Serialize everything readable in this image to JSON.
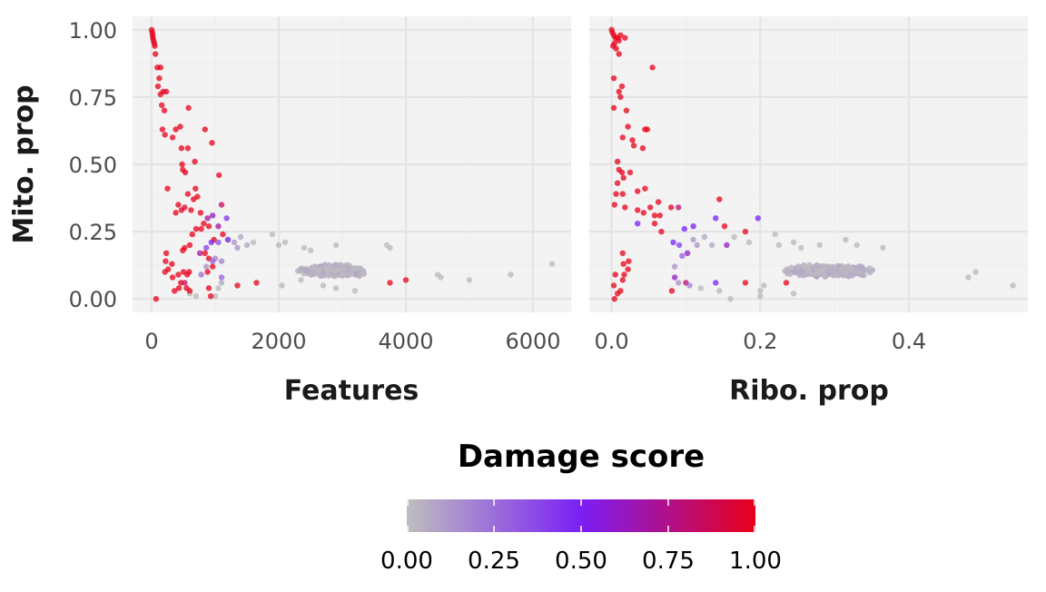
{
  "chart_data": {
    "type": "scatter",
    "y_label": "Mito. prop",
    "y_ticks": [
      "0.00",
      "0.25",
      "0.50",
      "0.75",
      "1.00"
    ],
    "y_range": [
      -0.05,
      1.05
    ],
    "legend": {
      "title": "Damage score",
      "ticks": [
        "0.00",
        "0.25",
        "0.50",
        "0.75",
        "1.00"
      ],
      "position": "bottom",
      "colors": [
        "#bebebe",
        "#7a1ff5",
        "#e8001a"
      ]
    },
    "background": "#f3f3f3",
    "grid": true,
    "panels": [
      {
        "x_label": "Features",
        "x_ticks": [
          "0",
          "2000",
          "4000",
          "6000"
        ],
        "x_range": [
          -300,
          6600
        ],
        "damaged_points": [
          [
            0,
            1.0,
            1.0
          ],
          [
            10,
            0.99,
            1.0
          ],
          [
            15,
            0.98,
            1.0
          ],
          [
            20,
            0.97,
            1.0
          ],
          [
            30,
            0.96,
            1.0
          ],
          [
            40,
            0.95,
            1.0
          ],
          [
            50,
            0.94,
            1.0
          ],
          [
            60,
            0.91,
            1.0
          ],
          [
            90,
            0.86,
            1.0
          ],
          [
            140,
            0.86,
            1.0
          ],
          [
            120,
            0.82,
            1.0
          ],
          [
            100,
            0.79,
            1.0
          ],
          [
            180,
            0.77,
            1.0
          ],
          [
            230,
            0.77,
            1.0
          ],
          [
            140,
            0.76,
            1.0
          ],
          [
            160,
            0.72,
            1.0
          ],
          [
            200,
            0.7,
            1.0
          ],
          [
            170,
            0.63,
            1.0
          ],
          [
            210,
            0.61,
            1.0
          ],
          [
            380,
            0.63,
            1.0
          ],
          [
            450,
            0.64,
            1.0
          ],
          [
            330,
            0.6,
            1.0
          ],
          [
            580,
            0.71,
            1.0
          ],
          [
            840,
            0.63,
            1.0
          ],
          [
            470,
            0.56,
            1.0
          ],
          [
            570,
            0.56,
            1.0
          ],
          [
            950,
            0.58,
            1.0
          ],
          [
            680,
            0.51,
            1.0
          ],
          [
            480,
            0.5,
            1.0
          ],
          [
            490,
            0.48,
            1.0
          ],
          [
            530,
            0.47,
            1.0
          ],
          [
            1060,
            0.46,
            1.0
          ],
          [
            250,
            0.41,
            1.0
          ],
          [
            570,
            0.39,
            1.0
          ],
          [
            690,
            0.41,
            1.0
          ],
          [
            660,
            0.37,
            1.0
          ],
          [
            720,
            0.38,
            1.0
          ],
          [
            420,
            0.35,
            1.0
          ],
          [
            470,
            0.33,
            1.0
          ],
          [
            520,
            0.34,
            0.95
          ],
          [
            620,
            0.33,
            1.0
          ],
          [
            380,
            0.32,
            1.0
          ],
          [
            770,
            0.32,
            1.0
          ],
          [
            880,
            0.3,
            0.7
          ],
          [
            960,
            0.31,
            0.6
          ],
          [
            1100,
            0.35,
            0.85
          ],
          [
            1180,
            0.3,
            0.45
          ],
          [
            820,
            0.28,
            1.0
          ],
          [
            900,
            0.27,
            1.0
          ],
          [
            780,
            0.26,
            1.0
          ],
          [
            700,
            0.26,
            1.0
          ],
          [
            640,
            0.24,
            1.0
          ],
          [
            1050,
            0.27,
            0.7
          ],
          [
            980,
            0.22,
            1.0
          ],
          [
            1120,
            0.24,
            1.0
          ],
          [
            520,
            0.19,
            1.0
          ],
          [
            600,
            0.2,
            1.0
          ],
          [
            940,
            0.21,
            0.5
          ],
          [
            1050,
            0.21,
            0.35
          ],
          [
            1200,
            0.22,
            0.45
          ],
          [
            860,
            0.19,
            0.4
          ],
          [
            760,
            0.17,
            0.7
          ],
          [
            840,
            0.17,
            1.0
          ],
          [
            230,
            0.17,
            1.0
          ],
          [
            490,
            0.18,
            1.0
          ],
          [
            220,
            0.14,
            1.0
          ],
          [
            320,
            0.13,
            1.0
          ],
          [
            900,
            0.15,
            1.0
          ],
          [
            960,
            0.14,
            0.3
          ],
          [
            260,
            0.11,
            1.0
          ],
          [
            210,
            0.1,
            1.0
          ],
          [
            330,
            0.08,
            1.0
          ],
          [
            420,
            0.09,
            1.0
          ],
          [
            500,
            0.1,
            1.0
          ],
          [
            560,
            0.09,
            1.0
          ],
          [
            590,
            0.1,
            1.0
          ],
          [
            880,
            0.1,
            1.0
          ],
          [
            960,
            0.12,
            1.0
          ],
          [
            1100,
            0.08,
            0.3
          ],
          [
            460,
            0.06,
            1.0
          ],
          [
            520,
            0.06,
            0.85
          ],
          [
            430,
            0.04,
            1.0
          ],
          [
            550,
            0.04,
            1.0
          ],
          [
            600,
            0.03,
            1.0
          ],
          [
            360,
            0.03,
            1.0
          ],
          [
            900,
            0.04,
            1.0
          ],
          [
            930,
            0.01,
            1.0
          ],
          [
            1350,
            0.05,
            1.0
          ],
          [
            1650,
            0.06,
            1.0
          ],
          [
            3750,
            0.06,
            1.0
          ],
          [
            4000,
            0.07,
            1.0
          ],
          [
            70,
            0.0,
            1.0
          ]
        ],
        "cloud": {
          "x": [
            1200,
            4500
          ],
          "y": [
            0.05,
            0.16
          ],
          "count": 700
        },
        "scattered_points": [
          [
            1200,
            0.22,
            0.1
          ],
          [
            1300,
            0.21,
            0.1
          ],
          [
            1400,
            0.23,
            0.05
          ],
          [
            1350,
            0.19,
            0.1
          ],
          [
            1500,
            0.2,
            0.05
          ],
          [
            1600,
            0.21,
            0.0
          ],
          [
            1900,
            0.24,
            0.0
          ],
          [
            2000,
            0.2,
            0.0
          ],
          [
            2100,
            0.21,
            0.0
          ],
          [
            2400,
            0.19,
            0.0
          ],
          [
            2500,
            0.18,
            0.0
          ],
          [
            2900,
            0.2,
            0.0
          ],
          [
            3700,
            0.2,
            0.0
          ],
          [
            3750,
            0.19,
            0.0
          ],
          [
            1100,
            0.14,
            0.15
          ],
          [
            1050,
            0.04,
            0.0
          ],
          [
            1000,
            0.01,
            0.0
          ],
          [
            1100,
            0.06,
            0.05
          ],
          [
            780,
            0.09,
            0.2
          ],
          [
            860,
            0.12,
            0.1
          ],
          [
            1000,
            0.15,
            0.15
          ],
          [
            600,
            0.02,
            0.0
          ],
          [
            700,
            0.01,
            0.0
          ],
          [
            5000,
            0.07,
            0.0
          ],
          [
            5650,
            0.09,
            0.0
          ],
          [
            6300,
            0.13,
            0.0
          ],
          [
            4550,
            0.08,
            0.0
          ],
          [
            4500,
            0.09,
            0.0
          ],
          [
            2900,
            0.04,
            0.0
          ],
          [
            3200,
            0.03,
            0.0
          ],
          [
            2700,
            0.05,
            0.0
          ],
          [
            2050,
            0.05,
            0.0
          ],
          [
            2350,
            0.07,
            0.0
          ]
        ]
      },
      {
        "x_label": "Ribo. prop",
        "x_ticks": [
          "0.0",
          "0.2",
          "0.4"
        ],
        "x_range": [
          -0.03,
          0.56
        ],
        "damaged_points": [
          [
            0.0,
            1.0,
            1.0
          ],
          [
            0.001,
            0.99,
            1.0
          ],
          [
            0.003,
            0.98,
            1.0
          ],
          [
            0.005,
            0.97,
            1.0
          ],
          [
            0.008,
            0.97,
            1.0
          ],
          [
            0.012,
            0.98,
            1.0
          ],
          [
            0.018,
            0.97,
            1.0
          ],
          [
            0.01,
            0.96,
            1.0
          ],
          [
            0.004,
            0.95,
            1.0
          ],
          [
            0.002,
            0.94,
            1.0
          ],
          [
            0.006,
            0.93,
            1.0
          ],
          [
            0.01,
            0.91,
            1.0
          ],
          [
            0.055,
            0.86,
            1.0
          ],
          [
            0.003,
            0.82,
            1.0
          ],
          [
            0.014,
            0.79,
            1.0
          ],
          [
            0.01,
            0.77,
            1.0
          ],
          [
            0.012,
            0.75,
            1.0
          ],
          [
            0.003,
            0.71,
            1.0
          ],
          [
            0.02,
            0.7,
            1.0
          ],
          [
            0.022,
            0.64,
            1.0
          ],
          [
            0.045,
            0.63,
            1.0
          ],
          [
            0.048,
            0.63,
            1.0
          ],
          [
            0.015,
            0.6,
            1.0
          ],
          [
            0.028,
            0.59,
            1.0
          ],
          [
            0.03,
            0.57,
            1.0
          ],
          [
            0.042,
            0.56,
            1.0
          ],
          [
            0.008,
            0.51,
            1.0
          ],
          [
            0.01,
            0.48,
            1.0
          ],
          [
            0.014,
            0.47,
            1.0
          ],
          [
            0.025,
            0.47,
            1.0
          ],
          [
            0.016,
            0.45,
            1.0
          ],
          [
            0.008,
            0.43,
            1.0
          ],
          [
            0.045,
            0.41,
            1.0
          ],
          [
            0.035,
            0.4,
            1.0
          ],
          [
            0.006,
            0.39,
            1.0
          ],
          [
            0.015,
            0.39,
            1.0
          ],
          [
            0.063,
            0.36,
            1.0
          ],
          [
            0.004,
            0.35,
            1.0
          ],
          [
            0.018,
            0.34,
            1.0
          ],
          [
            0.035,
            0.33,
            1.0
          ],
          [
            0.043,
            0.32,
            1.0
          ],
          [
            0.052,
            0.34,
            1.0
          ],
          [
            0.08,
            0.34,
            1.0
          ],
          [
            0.09,
            0.34,
            0.8
          ],
          [
            0.145,
            0.37,
            1.0
          ],
          [
            0.058,
            0.31,
            1.0
          ],
          [
            0.065,
            0.31,
            1.0
          ],
          [
            0.058,
            0.28,
            1.0
          ],
          [
            0.035,
            0.28,
            0.5
          ],
          [
            0.14,
            0.3,
            0.5
          ],
          [
            0.197,
            0.3,
            0.5
          ],
          [
            0.152,
            0.27,
            1.0
          ],
          [
            0.11,
            0.27,
            0.5
          ],
          [
            0.067,
            0.25,
            1.0
          ],
          [
            0.098,
            0.26,
            0.5
          ],
          [
            0.18,
            0.25,
            1.0
          ],
          [
            0.015,
            0.17,
            1.0
          ],
          [
            0.083,
            0.21,
            0.5
          ],
          [
            0.091,
            0.2,
            0.4
          ],
          [
            0.155,
            0.2,
            0.6
          ],
          [
            0.023,
            0.14,
            1.0
          ],
          [
            0.016,
            0.13,
            1.0
          ],
          [
            0.102,
            0.17,
            0.6
          ],
          [
            0.095,
            0.16,
            0.3
          ],
          [
            0.005,
            0.09,
            1.0
          ],
          [
            0.017,
            0.09,
            1.0
          ],
          [
            0.022,
            0.11,
            1.0
          ],
          [
            0.015,
            0.07,
            1.0
          ],
          [
            0.003,
            0.05,
            1.0
          ],
          [
            0.012,
            0.03,
            1.0
          ],
          [
            0.008,
            0.02,
            1.0
          ],
          [
            0.004,
            0.0,
            1.0
          ],
          [
            0.085,
            0.08,
            0.6
          ],
          [
            0.1,
            0.06,
            0.8
          ],
          [
            0.081,
            0.03,
            1.0
          ],
          [
            0.18,
            0.06,
            1.0
          ],
          [
            0.235,
            0.06,
            1.0
          ],
          [
            0.105,
            0.05,
            0.2
          ],
          [
            0.14,
            0.06,
            0.5
          ]
        ],
        "cloud": {
          "x": [
            0.1,
            0.49
          ],
          "y": [
            0.05,
            0.16
          ],
          "count": 700
        },
        "scattered_points": [
          [
            0.11,
            0.22,
            0.1
          ],
          [
            0.125,
            0.23,
            0.05
          ],
          [
            0.115,
            0.2,
            0.1
          ],
          [
            0.135,
            0.2,
            0.05
          ],
          [
            0.165,
            0.23,
            0.0
          ],
          [
            0.185,
            0.21,
            0.0
          ],
          [
            0.22,
            0.24,
            0.0
          ],
          [
            0.225,
            0.2,
            0.0
          ],
          [
            0.245,
            0.21,
            0.0
          ],
          [
            0.255,
            0.19,
            0.0
          ],
          [
            0.28,
            0.2,
            0.0
          ],
          [
            0.315,
            0.22,
            0.0
          ],
          [
            0.33,
            0.2,
            0.0
          ],
          [
            0.365,
            0.19,
            0.0
          ],
          [
            0.16,
            0.0,
            0.0
          ],
          [
            0.145,
            0.03,
            0.0
          ],
          [
            0.2,
            0.03,
            0.0
          ],
          [
            0.245,
            0.02,
            0.0
          ],
          [
            0.2,
            0.01,
            0.0
          ],
          [
            0.54,
            0.05,
            0.0
          ],
          [
            0.49,
            0.1,
            0.0
          ],
          [
            0.48,
            0.08,
            0.0
          ],
          [
            0.12,
            0.04,
            0.0
          ],
          [
            0.205,
            0.05,
            0.0
          ],
          [
            0.09,
            0.06,
            0.1
          ],
          [
            0.085,
            0.12,
            0.1
          ]
        ]
      }
    ]
  }
}
